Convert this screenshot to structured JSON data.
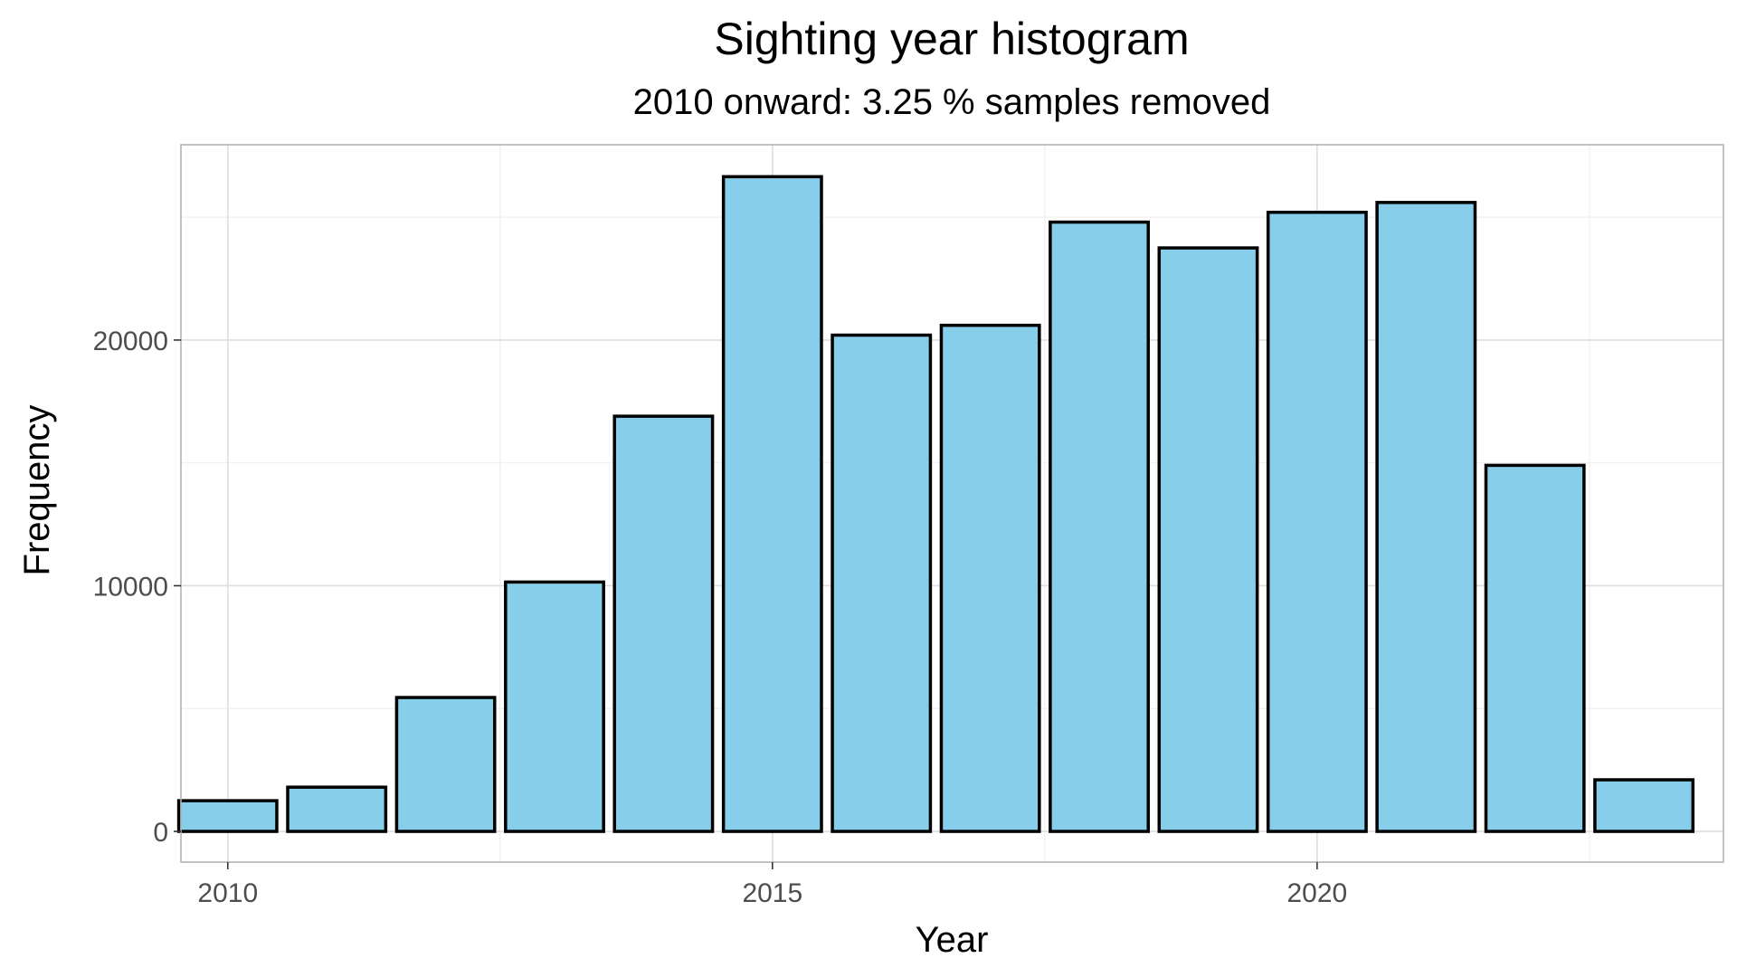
{
  "chart_data": {
    "type": "bar",
    "title": "Sighting year histogram",
    "subtitle": "2010 onward: 3.25 % samples removed",
    "xlabel": "Year",
    "ylabel": "Frequency",
    "x": [
      2010,
      2011,
      2012,
      2013,
      2014,
      2015,
      2016,
      2017,
      2018,
      2019,
      2020,
      2021,
      2022,
      2023
    ],
    "values": [
      1250,
      1800,
      5450,
      10150,
      16900,
      26650,
      20200,
      20600,
      24800,
      23750,
      25200,
      25600,
      14900,
      2100
    ],
    "xlim": [
      2009.57,
      2023.73
    ],
    "ylim": [
      -1250,
      27950
    ],
    "x_ticks": [
      "2010",
      "2015",
      "2020"
    ],
    "y_ticks": [
      "0",
      "10000",
      "20000"
    ],
    "grid": true,
    "legend": "none",
    "colors": {
      "bar_fill": "#87ceeb",
      "bar_outline": "#000000",
      "panel_border": "#b3b3b3",
      "grid_major": "#dedede",
      "grid_minor": "#efefef",
      "tick_text": "#4d4d4d"
    }
  }
}
